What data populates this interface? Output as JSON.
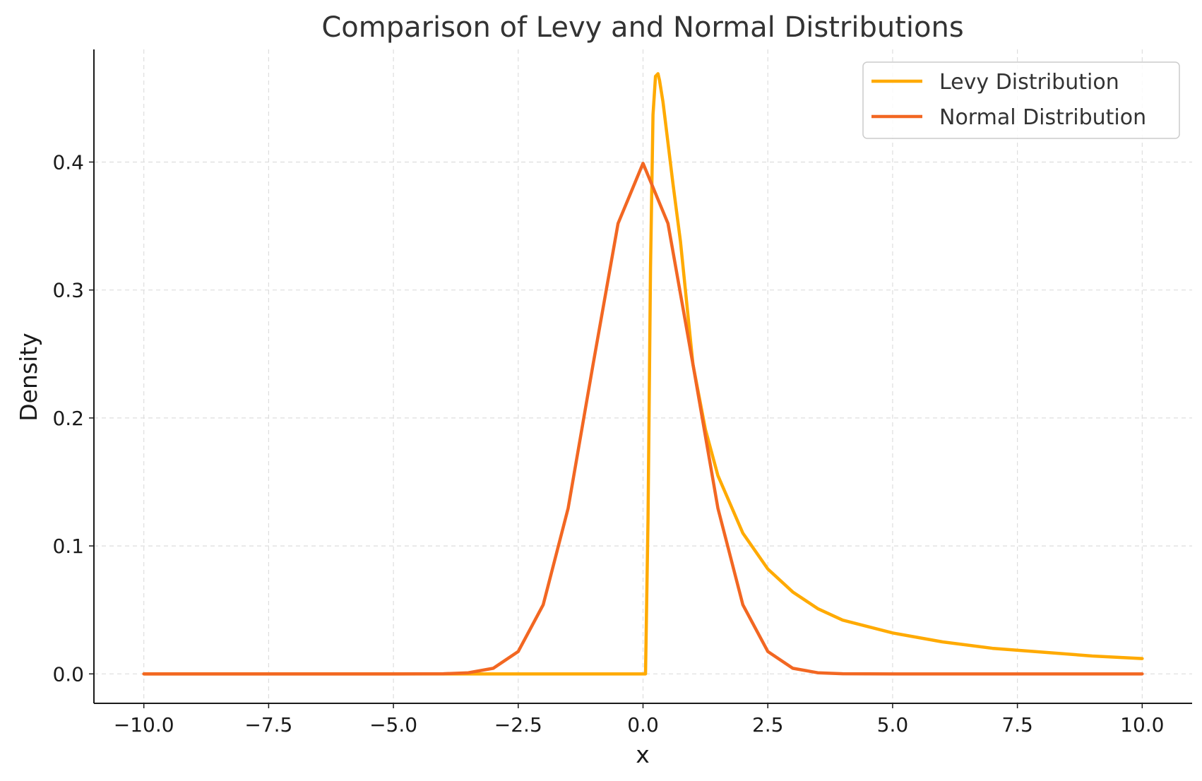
{
  "chart_data": {
    "type": "line",
    "title": "Comparison of Levy and Normal Distributions",
    "xlabel": "x",
    "ylabel": "Density",
    "xlim": [
      -11.0,
      11.0
    ],
    "ylim": [
      -0.023,
      0.488
    ],
    "xticks": [
      -10.0,
      -7.5,
      -5.0,
      -2.5,
      0.0,
      2.5,
      5.0,
      7.5,
      10.0
    ],
    "xtick_labels": [
      "−10.0",
      "−7.5",
      "−5.0",
      "−2.5",
      "0.0",
      "2.5",
      "5.0",
      "7.5",
      "10.0"
    ],
    "yticks": [
      0.0,
      0.1,
      0.2,
      0.3,
      0.4
    ],
    "ytick_labels": [
      "0.0",
      "0.1",
      "0.2",
      "0.3",
      "0.4"
    ],
    "grid": true,
    "legend_position": "top-right",
    "series": [
      {
        "name": "Levy Distribution",
        "color": "#FFAA00",
        "x": [
          -10.0,
          0.0,
          0.05,
          0.1,
          0.15,
          0.2,
          0.25,
          0.3,
          0.33,
          0.4,
          0.5,
          0.6,
          0.75,
          1.0,
          1.25,
          1.5,
          2.0,
          2.5,
          3.0,
          3.5,
          4.0,
          5.0,
          6.0,
          7.0,
          8.0,
          9.0,
          10.0
        ],
        "y": [
          0.0,
          0.0,
          0.0,
          0.12,
          0.317,
          0.437,
          0.467,
          0.469,
          0.464,
          0.447,
          0.415,
          0.383,
          0.338,
          0.242,
          0.191,
          0.155,
          0.11,
          0.082,
          0.064,
          0.051,
          0.042,
          0.032,
          0.025,
          0.02,
          0.017,
          0.014,
          0.012
        ]
      },
      {
        "name": "Normal Distribution",
        "color": "#F26722",
        "x": [
          -10.0,
          -5.0,
          -4.0,
          -3.5,
          -3.0,
          -2.5,
          -2.0,
          -1.5,
          -1.0,
          -0.5,
          0.0,
          0.5,
          1.0,
          1.5,
          2.0,
          2.5,
          3.0,
          3.5,
          4.0,
          5.0,
          10.0
        ],
        "y": [
          0.0,
          0.0,
          0.0001,
          0.0009,
          0.0044,
          0.0175,
          0.054,
          0.1295,
          0.242,
          0.352,
          0.399,
          0.352,
          0.242,
          0.1295,
          0.054,
          0.0175,
          0.0044,
          0.0009,
          0.0001,
          0.0,
          0.0
        ]
      }
    ]
  }
}
